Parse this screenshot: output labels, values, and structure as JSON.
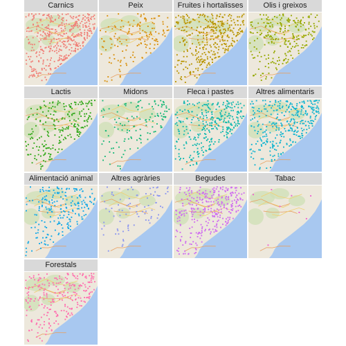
{
  "facets": [
    {
      "label": "Carnics",
      "color": "#f08078",
      "density": 1.0
    },
    {
      "label": "Peix",
      "color": "#d9900c",
      "density": 0.35
    },
    {
      "label": "Fruites i hortalisses",
      "color": "#b89400",
      "density": 0.85
    },
    {
      "label": "Olis i greixos",
      "color": "#95a800",
      "density": 0.6
    },
    {
      "label": "Lactis",
      "color": "#30a818",
      "density": 0.55
    },
    {
      "label": "Midons",
      "color": "#18b878",
      "density": 0.3
    },
    {
      "label": "Fleca i pastes",
      "color": "#10b8b0",
      "density": 0.75
    },
    {
      "label": "Altres alimentaris",
      "color": "#10b4d0",
      "density": 0.8
    },
    {
      "label": "Alimentació animal",
      "color": "#10a8e8",
      "density": 0.5
    },
    {
      "label": "Altres agràries",
      "color": "#8c96f0",
      "density": 0.2
    },
    {
      "label": "Begudes",
      "color": "#d06ef0",
      "density": 0.75
    },
    {
      "label": "Tabac",
      "color": "#f060d0",
      "density": 0.02
    },
    {
      "label": "Forestals",
      "color": "#ff70b0",
      "density": 0.6
    }
  ]
}
